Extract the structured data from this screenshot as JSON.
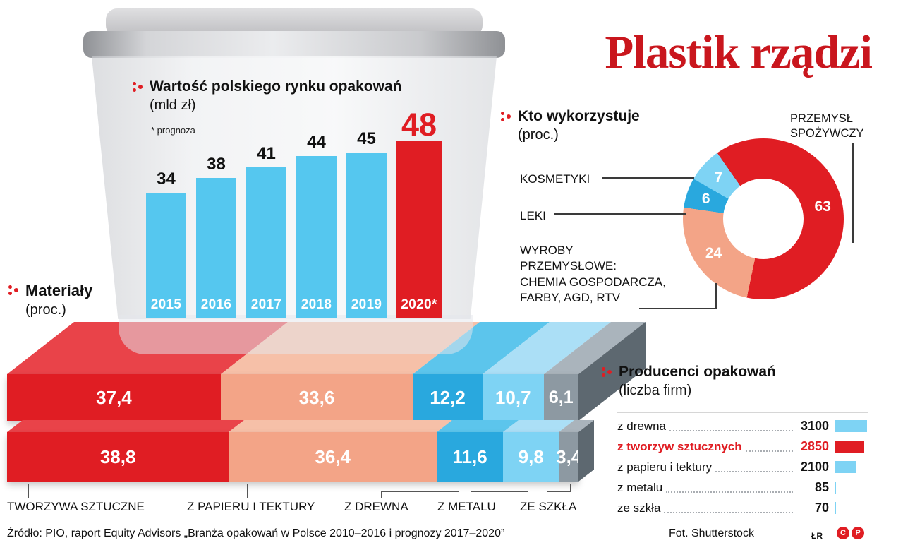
{
  "title": "Plastik rządzi",
  "chart_data": [
    {
      "type": "bar",
      "title": "Wartość polskiego rynku opakowań",
      "subtitle": "(mld zł)",
      "note": "* prognoza",
      "categories": [
        "2015",
        "2016",
        "2017",
        "2018",
        "2019",
        "2020*"
      ],
      "values": [
        34,
        38,
        41,
        44,
        45,
        48
      ],
      "ylabel": "mld zł",
      "bar_color": "#55c7ef",
      "forecast_color": "#e01d23",
      "forecast_index": 5
    },
    {
      "type": "pie",
      "title": "Kto wykorzystuje",
      "subtitle": "(proc.)",
      "slices": [
        {
          "label": "PRZEMYSŁ SPOŻYWCZY",
          "value": 63,
          "color": "#e01d23"
        },
        {
          "label": "WYROBY PRZEMYSŁOWE: CHEMIA GOSPODARCZA, FARBY, AGD, RTV",
          "value": 24,
          "color": "#f3a487"
        },
        {
          "label": "LEKI",
          "value": 6,
          "color": "#29a8de"
        },
        {
          "label": "KOSMETYKI",
          "value": 7,
          "color": "#7ed3f4"
        }
      ],
      "callout_przemysl": "PRZEMYSŁ\nSPOŻYWCZY",
      "callout_kosmetyki": "KOSMETYKI",
      "callout_leki": "LEKI",
      "callout_wyroby": "WYROBY\nPRZEMYSŁOWE:\nCHEMIA GOSPODARCZA,\nFARBY,  AGD, RTV"
    },
    {
      "type": "stacked-bar",
      "title": "Materiały",
      "subtitle": "(proc.)",
      "categories": [
        "TWORZYWA SZTUCZNE",
        "Z PAPIERU I TEKTURY",
        "Z DREWNA",
        "Z METALU",
        "ZE SZKŁA"
      ],
      "colors": [
        "#e01d23",
        "#f3a487",
        "#29a8de",
        "#7ed3f4",
        "#8d99a2"
      ],
      "top_colors": [
        "#e94349",
        "#f6c0a8",
        "#5cc5ec",
        "#abdff6",
        "#aab4bc"
      ],
      "series": [
        {
          "name": "bar-top",
          "values": [
            37.4,
            33.6,
            12.2,
            10.7,
            6.1
          ]
        },
        {
          "name": "bar-bottom",
          "values": [
            38.8,
            36.4,
            11.6,
            9.8,
            3.4
          ]
        }
      ]
    },
    {
      "type": "table",
      "title": "Producenci opakowań",
      "subtitle": "(liczba firm)",
      "rows": [
        {
          "label": "z drewna",
          "value": 3100,
          "color": "#7ed3f4",
          "highlight": false
        },
        {
          "label": "z tworzyw sztucznych",
          "value": 2850,
          "color": "#e01d23",
          "highlight": true
        },
        {
          "label": "z papieru i tektury",
          "value": 2100,
          "color": "#7ed3f4",
          "highlight": false
        },
        {
          "label": "z metalu",
          "value": 85,
          "color": "#7ed3f4",
          "highlight": false
        },
        {
          "label": "ze szkła",
          "value": 70,
          "color": "#7ed3f4",
          "highlight": false
        }
      ]
    }
  ],
  "footer": {
    "source": "Źródło: PIO, raport Equity Advisors „Branża opakowań w Polsce 2010–2016 i prognozy 2017–2020”",
    "photo_credit": "Fot. Shutterstock",
    "author": "ŁR",
    "copyright_c": "C",
    "copyright_p": "P"
  }
}
